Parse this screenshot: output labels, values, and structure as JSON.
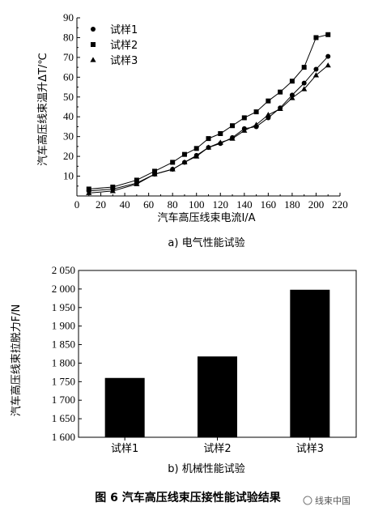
{
  "caption": "图 6   汽车高压线束压接性能试验结果",
  "watermark": "线束中国",
  "chart_data": [
    {
      "type": "line",
      "subtitle": "a) 电气性能试验",
      "xlabel": "汽车高压线束电流I/A",
      "ylabel": "汽车高压线束温升ΔT/℃",
      "xlim": [
        0,
        220
      ],
      "ylim": [
        0,
        90
      ],
      "xticks": [
        0,
        20,
        40,
        60,
        80,
        100,
        120,
        140,
        160,
        180,
        200,
        220
      ],
      "yticks": [
        10,
        20,
        30,
        40,
        50,
        60,
        70,
        80,
        90
      ],
      "x": [
        10,
        30,
        50,
        65,
        80,
        90,
        100,
        110,
        120,
        130,
        140,
        150,
        160,
        170,
        180,
        190,
        200,
        210
      ],
      "legend_position": "top-left",
      "grid": false,
      "series": [
        {
          "name": "试样1",
          "marker": "circle",
          "values": [
            2.5,
            3.5,
            6.5,
            11,
            13.5,
            17,
            20.5,
            24.5,
            26.5,
            29.5,
            34,
            35,
            39.5,
            44.5,
            51,
            57,
            64,
            70.5
          ]
        },
        {
          "name": "试样2",
          "marker": "square",
          "values": [
            3.5,
            4.5,
            8,
            12.5,
            17,
            21,
            24,
            29,
            31.5,
            35.5,
            39.5,
            42.5,
            48,
            52.5,
            58,
            65,
            80,
            81.5
          ]
        },
        {
          "name": "试样3",
          "marker": "triangle",
          "values": [
            1.5,
            2.5,
            6,
            11,
            13.5,
            17,
            20,
            24.5,
            27,
            29,
            33,
            36,
            41,
            44,
            49.5,
            54,
            61,
            66
          ]
        }
      ]
    },
    {
      "type": "bar",
      "subtitle": "b) 机械性能试验",
      "ylabel": "汽车高压线束拉脱力F/N",
      "categories": [
        "试样1",
        "试样2",
        "试样3"
      ],
      "values": [
        1760,
        1818,
        1998
      ],
      "ylim": [
        1600,
        2050
      ],
      "yticks": [
        1600,
        1650,
        1700,
        1750,
        1800,
        1850,
        1900,
        1950,
        2000,
        2050
      ],
      "ytick_labels": [
        "1 600",
        "1 650",
        "1 700",
        "1 750",
        "1 800",
        "1 850",
        "1 900",
        "1 950",
        "2 000",
        "2 050"
      ],
      "bar_color": "#000000",
      "grid": false
    }
  ]
}
